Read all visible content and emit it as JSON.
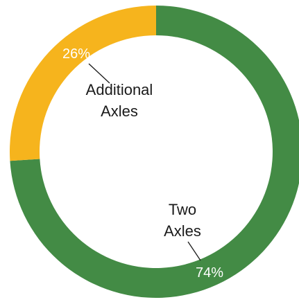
{
  "chart_data": {
    "type": "pie",
    "variant": "donut",
    "categories": [
      "Two Axles",
      "Additional Axles"
    ],
    "values": [
      74,
      26
    ],
    "value_labels": [
      "74%",
      "26%"
    ],
    "category_label_lines": [
      [
        "Two",
        "Axles"
      ],
      [
        "Additional",
        "Axles"
      ]
    ],
    "colors": [
      "#438b45",
      "#f6b41d"
    ],
    "title": "",
    "legend": "none"
  }
}
